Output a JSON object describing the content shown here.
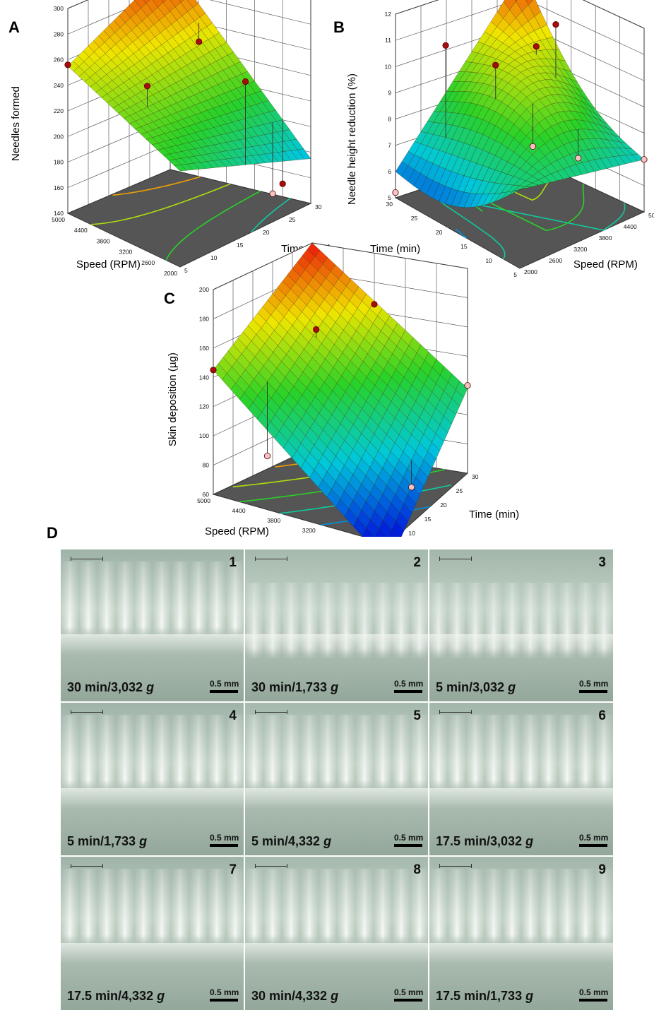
{
  "panels": [
    {
      "letter": "A",
      "chart_data": {
        "type": "surface3d",
        "zlabel": "Needles formed",
        "xlabel": "Speed (RPM)",
        "ylabel": "Time (min)",
        "x_ticks": [
          "2000",
          "2600",
          "3200",
          "3800",
          "4400",
          "5000"
        ],
        "y_ticks": [
          "5",
          "10",
          "15",
          "20",
          "25",
          "30"
        ],
        "z_ticks": [
          "140",
          "160",
          "180",
          "200",
          "220",
          "240",
          "260",
          "280",
          "300"
        ],
        "xlim": [
          2000,
          5000
        ],
        "ylim": [
          5,
          30
        ],
        "zlim": [
          140,
          300
        ],
        "surface_corners": {
          "speed_2000_time_5": 215,
          "speed_5000_time_5": 255,
          "speed_2000_time_30": 175,
          "speed_5000_time_30": 300
        },
        "design_points": [
          {
            "speed": 2600,
            "time": 30,
            "value": 150,
            "above_surface": true
          },
          {
            "speed": 2000,
            "time": 17.5,
            "value": 260,
            "above_surface": true
          },
          {
            "speed": 5000,
            "time": 5,
            "value": 256,
            "above_surface": true
          },
          {
            "speed": 3500,
            "time": 10,
            "value": 252,
            "above_surface": true
          },
          {
            "speed": 4200,
            "time": 28,
            "value": 250,
            "above_surface": true
          },
          {
            "speed": 2600,
            "time": 28,
            "value": 146,
            "above_surface": false
          }
        ]
      }
    },
    {
      "letter": "B",
      "chart_data": {
        "type": "surface3d",
        "zlabel": "Needle height reduction (%)",
        "xlabel": "Speed (RPM)",
        "ylabel": "Time (min)",
        "x_ticks": [
          "5000",
          "4400",
          "3800",
          "3200",
          "2600",
          "2000"
        ],
        "y_ticks": [
          "5",
          "10",
          "15",
          "20",
          "25",
          "30"
        ],
        "z_ticks": [
          "5",
          "6",
          "7",
          "8",
          "9",
          "10",
          "11",
          "12"
        ],
        "xlim": [
          2000,
          5000
        ],
        "ylim": [
          5,
          30
        ],
        "zlim": [
          5,
          12
        ],
        "surface_corners": {
          "speed_5000_time_30": 6.0,
          "speed_2000_time_30": 12.0,
          "speed_5000_time_5": 8.0,
          "speed_2000_time_5": 7.0
        },
        "design_points": [
          {
            "speed": 5000,
            "time": 30,
            "value": 5.2,
            "above_surface": false
          },
          {
            "speed": 4400,
            "time": 25,
            "value": 11.0,
            "above_surface": true
          },
          {
            "speed": 3800,
            "time": 20,
            "value": 10.4,
            "above_surface": true
          },
          {
            "speed": 3500,
            "time": 15,
            "value": 7.6,
            "above_surface": false
          },
          {
            "speed": 3000,
            "time": 10,
            "value": 7.3,
            "above_surface": false
          },
          {
            "speed": 2600,
            "time": 18,
            "value": 11.4,
            "above_surface": true
          },
          {
            "speed": 2600,
            "time": 22,
            "value": 10.2,
            "above_surface": true
          },
          {
            "speed": 2000,
            "time": 5,
            "value": 7.0,
            "above_surface": false
          }
        ]
      }
    },
    {
      "letter": "C",
      "chart_data": {
        "type": "surface3d",
        "zlabel": "Skin deposition (µg)",
        "xlabel": "Speed (RPM)",
        "ylabel": "Time (min)",
        "x_ticks": [
          "2000",
          "2600",
          "3200",
          "3800",
          "4400",
          "5000"
        ],
        "y_ticks": [
          "5",
          "10",
          "15",
          "20",
          "25",
          "30"
        ],
        "z_ticks": [
          "60",
          "80",
          "100",
          "120",
          "140",
          "160",
          "180",
          "200"
        ],
        "xlim": [
          2000,
          5000
        ],
        "ylim": [
          5,
          30
        ],
        "zlim": [
          60,
          200
        ],
        "surface_corners": {
          "speed_5000_time_5": 145,
          "speed_5000_time_30": 200,
          "speed_2000_time_30": 118,
          "speed_2000_time_5": 45
        },
        "design_points": [
          {
            "speed": 5000,
            "time": 5,
            "value": 145,
            "above_surface": true
          },
          {
            "speed": 4200,
            "time": 20,
            "value": 160,
            "above_surface": true
          },
          {
            "speed": 3800,
            "time": 30,
            "value": 165,
            "above_surface": true
          },
          {
            "speed": 4400,
            "time": 10,
            "value": 86,
            "above_surface": false
          },
          {
            "speed": 2000,
            "time": 30,
            "value": 120,
            "above_surface": false
          },
          {
            "speed": 2300,
            "time": 17.5,
            "value": 72,
            "above_surface": false
          },
          {
            "speed": 2000,
            "time": 5,
            "value": 52,
            "above_surface": false
          }
        ]
      }
    }
  ],
  "panel_d": {
    "letter": "D",
    "scale_label": "0.5 mm",
    "images": [
      {
        "number": "1",
        "time": "30 min",
        "force": "3,032",
        "unit": "g"
      },
      {
        "number": "2",
        "time": "30 min",
        "force": "1,733",
        "unit": "g"
      },
      {
        "number": "3",
        "time": "5 min",
        "force": "3,032",
        "unit": "g"
      },
      {
        "number": "4",
        "time": "5 min",
        "force": "1,733",
        "unit": "g"
      },
      {
        "number": "5",
        "time": "5 min",
        "force": "4,332",
        "unit": "g"
      },
      {
        "number": "6",
        "time": "17.5 min",
        "force": "3,032",
        "unit": "g"
      },
      {
        "number": "7",
        "time": "17.5 min",
        "force": "4,332",
        "unit": "g"
      },
      {
        "number": "8",
        "time": "30 min",
        "force": "4,332",
        "unit": "g"
      },
      {
        "number": "9",
        "time": "17.5 min",
        "force": "1,733",
        "unit": "g"
      }
    ]
  }
}
